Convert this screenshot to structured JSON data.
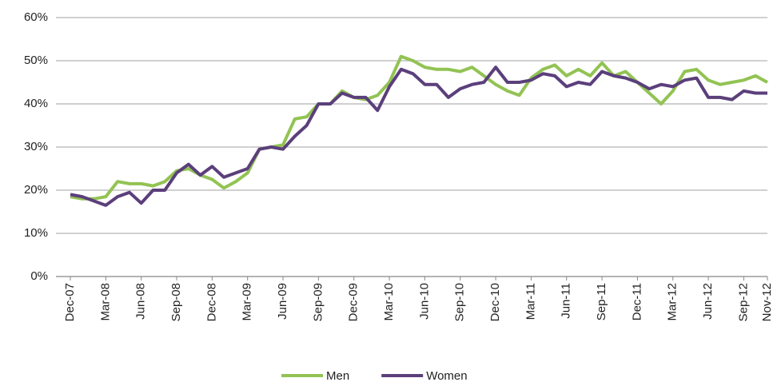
{
  "chart_data": {
    "type": "line",
    "categories": [
      "Dec-07",
      null,
      null,
      "Mar-08",
      null,
      null,
      "Jun-08",
      null,
      null,
      "Sep-08",
      null,
      null,
      "Dec-08",
      null,
      null,
      "Mar-09",
      null,
      null,
      "Jun-09",
      null,
      null,
      "Sep-09",
      null,
      null,
      "Dec-09",
      null,
      null,
      "Mar-10",
      null,
      null,
      "Jun-10",
      null,
      null,
      "Sep-10",
      null,
      null,
      "Dec-10",
      null,
      null,
      "Mar-11",
      null,
      null,
      "Jun-11",
      null,
      null,
      "Sep-11",
      null,
      null,
      "Dec-11",
      null,
      null,
      "Mar-12",
      null,
      null,
      "Jun-12",
      null,
      null,
      "Sep-12",
      null,
      "Nov-12"
    ],
    "series": [
      {
        "name": "Men",
        "color": "#92c353",
        "values": [
          18.5,
          18,
          18,
          18.5,
          22,
          21.5,
          21.5,
          21,
          22,
          24.5,
          25,
          23.5,
          22.5,
          20.5,
          22,
          24,
          29.5,
          30,
          30.5,
          36.5,
          37,
          40,
          40,
          43,
          41.5,
          41,
          42,
          45,
          51,
          50,
          48.5,
          48,
          48,
          47.5,
          48.5,
          46.5,
          44.5,
          43,
          42,
          46,
          48,
          49,
          46.5,
          48,
          46.5,
          49.5,
          46.5,
          47.5,
          45,
          42.5,
          40,
          43,
          47.5,
          48,
          45.5,
          44.5,
          45,
          45.5,
          46.5,
          45
        ]
      },
      {
        "name": "Women",
        "color": "#5b3f7b",
        "values": [
          19,
          18.5,
          17.5,
          16.5,
          18.5,
          19.5,
          17,
          20,
          20,
          24,
          26,
          23.5,
          25.5,
          23,
          24,
          25,
          29.5,
          30,
          29.5,
          32.5,
          35,
          40,
          40,
          42.5,
          41.5,
          41.5,
          38.5,
          44,
          48,
          47,
          44.5,
          44.5,
          41.5,
          43.5,
          44.5,
          45,
          48.5,
          45,
          45,
          45.5,
          47,
          46.5,
          44,
          45,
          44.5,
          47.5,
          46.5,
          46,
          45,
          43.5,
          44.5,
          44,
          45.5,
          46,
          41.5,
          41.5,
          41,
          43,
          42.5,
          42.5
        ]
      }
    ],
    "ylim": [
      0,
      60
    ],
    "yticks": [
      {
        "value": 0,
        "label": "0%"
      },
      {
        "value": 10,
        "label": "10%"
      },
      {
        "value": 20,
        "label": "20%"
      },
      {
        "value": 30,
        "label": "30%"
      },
      {
        "value": 40,
        "label": "40%"
      },
      {
        "value": 50,
        "label": "50%"
      },
      {
        "value": 60,
        "label": "60%"
      }
    ],
    "grid": true,
    "legend": "bottom"
  }
}
